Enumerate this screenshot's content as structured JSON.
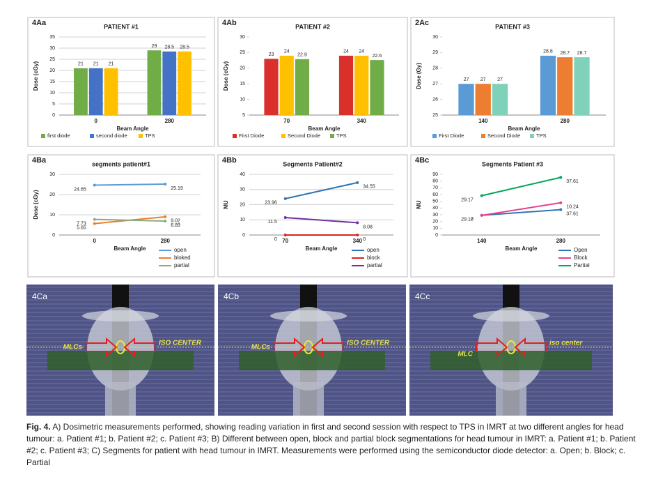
{
  "chart_data": [
    {
      "type": "bar",
      "panel_label": "4Aa",
      "title": "PATIENT #1",
      "x_label": "Beam Angle",
      "y_label": "Dose (cGy)",
      "categories": [
        "0",
        "280"
      ],
      "ylim": [
        0,
        35
      ],
      "yticks": [
        0,
        5,
        10,
        15,
        20,
        25,
        30,
        35
      ],
      "grid": true,
      "legend": "bottom",
      "series": [
        {
          "name": "first diode",
          "color": "#70ad47",
          "values": [
            21,
            29
          ]
        },
        {
          "name": "second diode",
          "color": "#4472c4",
          "values": [
            21,
            28.5
          ]
        },
        {
          "name": "TPS",
          "color": "#ffc000",
          "values": [
            21,
            28.5
          ]
        }
      ]
    },
    {
      "type": "bar",
      "panel_label": "4Ab",
      "title": "PATIENT #2",
      "x_label": "Beam Angle",
      "y_label": "Dose (cGy)",
      "categories": [
        "70",
        "340"
      ],
      "ylim": [
        5,
        30
      ],
      "yticks": [
        5,
        10,
        15,
        20,
        25,
        30
      ],
      "grid": false,
      "legend": "bottom",
      "series": [
        {
          "name": "First Diode",
          "color": "#d9302c",
          "values": [
            23,
            24
          ]
        },
        {
          "name": "Second Diode",
          "color": "#ffc000",
          "values": [
            24,
            24
          ]
        },
        {
          "name": "TPS",
          "color": "#70ad47",
          "values": [
            22.9,
            22.6
          ]
        }
      ]
    },
    {
      "type": "bar",
      "panel_label": "2Ac",
      "title": "PATIENT #3",
      "x_label": "Beam Angle",
      "y_label": "Dose (Gy)",
      "categories": [
        "140",
        "280"
      ],
      "ylim": [
        25,
        30
      ],
      "yticks": [
        25,
        26,
        27,
        28,
        29,
        30
      ],
      "grid": false,
      "legend": "bottom",
      "series": [
        {
          "name": "First Diode",
          "color": "#5b9bd5",
          "values": [
            27,
            28.8
          ]
        },
        {
          "name": "Second Diode",
          "color": "#ed7d31",
          "values": [
            27,
            28.7
          ]
        },
        {
          "name": "TPS",
          "color": "#7fd1b9",
          "values": [
            27,
            28.7
          ]
        }
      ]
    },
    {
      "type": "line",
      "panel_label": "4Ba",
      "title": "segments patient#1",
      "x_label": "Beam Angle",
      "y_label": "Dose (cGy)",
      "categories": [
        "0",
        "280"
      ],
      "ylim": [
        0,
        30
      ],
      "yticks": [
        0,
        10,
        20,
        30
      ],
      "grid": true,
      "legend": "right",
      "stacked": false,
      "series": [
        {
          "name": "open",
          "color": "#5b9bd5",
          "values": [
            24.65,
            25.19
          ]
        },
        {
          "name": "bloked",
          "color": "#ed7d31",
          "values": [
            5.65,
            9.02
          ]
        },
        {
          "name": "partial",
          "color": "#8faa7c",
          "values": [
            7.73,
            6.89
          ]
        }
      ]
    },
    {
      "type": "line",
      "panel_label": "4Bb",
      "title": "Segments Patient#2",
      "x_label": "Beam Angle",
      "y_label": "MU",
      "categories": [
        "70",
        "340"
      ],
      "ylim": [
        0,
        40
      ],
      "yticks": [
        0,
        10,
        20,
        30,
        40
      ],
      "grid": true,
      "legend": "right",
      "stacked": false,
      "series": [
        {
          "name": "open",
          "color": "#2e75b6",
          "values": [
            23.96,
            34.55
          ]
        },
        {
          "name": "block",
          "color": "#e02020",
          "values": [
            0,
            0
          ]
        },
        {
          "name": "partial",
          "color": "#7030a0",
          "values": [
            11.5,
            8.08
          ]
        }
      ]
    },
    {
      "type": "line",
      "panel_label": "4Bc",
      "title": "Segments Patient #3",
      "x_label": "Beam Angle",
      "y_label": "MU",
      "categories": [
        "140",
        "280"
      ],
      "ylim": [
        0,
        90
      ],
      "yticks": [
        0,
        10,
        20,
        30,
        40,
        50,
        60,
        70,
        80,
        90
      ],
      "grid": false,
      "legend": "right",
      "stacked": true,
      "series": [
        {
          "name": "Open",
          "color": "#2e75b6",
          "values": [
            29.17,
            37.61
          ]
        },
        {
          "name": "Block",
          "color": "#e83e8c",
          "values": [
            0,
            10.24
          ]
        },
        {
          "name": "Partial",
          "color": "#00a651",
          "values": [
            29.17,
            37.61
          ]
        }
      ]
    }
  ],
  "images": [
    {
      "label": "4Ca",
      "annotations": [
        "MLCs",
        "ISO CENTER"
      ]
    },
    {
      "label": "4Cb",
      "annotations": [
        "MLCs",
        "ISO CENTER"
      ]
    },
    {
      "label": "4Cc",
      "annotations": [
        "MLC",
        "iso center"
      ]
    }
  ],
  "caption": {
    "label": "Fig. 4.",
    "text": "A) Dosimetric measurements performed, showing reading variation in first and second session with respect to TPS in IMRT at two different angles for head tumour: a. Patient #1; b. Patient #2; c. Patient #3; B) Different between open, block and partial block segmentations for head tumour in IMRT: a. Patient #1; b. Patient #2; c. Patient #3; C) Segments for patient with head tumour in IMRT. Measurements were performed using the semiconductor diode detector: a. Open; b. Block; c. Partial"
  }
}
